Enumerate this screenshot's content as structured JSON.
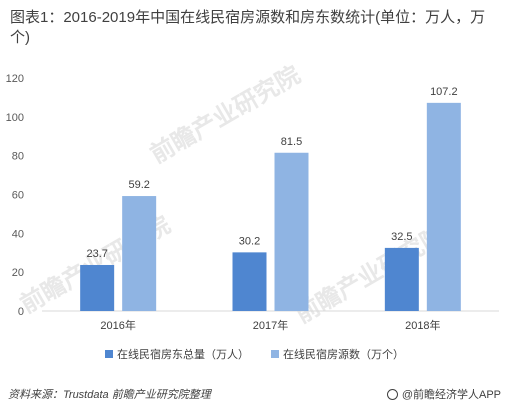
{
  "title": "图表1：2016-2019年中国在线民宿房源数和房东数统计(单位：万人，万个)",
  "watermark": "前瞻产业研究院",
  "source": "资料来源：Trustdata 前瞻产业研究院整理",
  "brand": "@前瞻经济学人APP",
  "colors": {
    "series1": "#4f86d0",
    "series2": "#8fb4e3",
    "grid": "#d9d9d9"
  },
  "chart_data": {
    "type": "bar",
    "title": "图表1：2016-2019年中国在线民宿房源数和房东数统计(单位：万人，万个)",
    "categories": [
      "2016年",
      "2017年",
      "2018年"
    ],
    "series": [
      {
        "name": "在线民宿房东总量（万人）",
        "values": [
          23.7,
          30.2,
          32.5
        ]
      },
      {
        "name": "在线民宿房源数（万个）",
        "values": [
          59.2,
          81.5,
          107.2
        ]
      }
    ],
    "ylim": [
      0,
      120
    ],
    "yticks": [
      0,
      20,
      40,
      60,
      80,
      100,
      120
    ],
    "grid": false,
    "legend_position": "bottom"
  }
}
